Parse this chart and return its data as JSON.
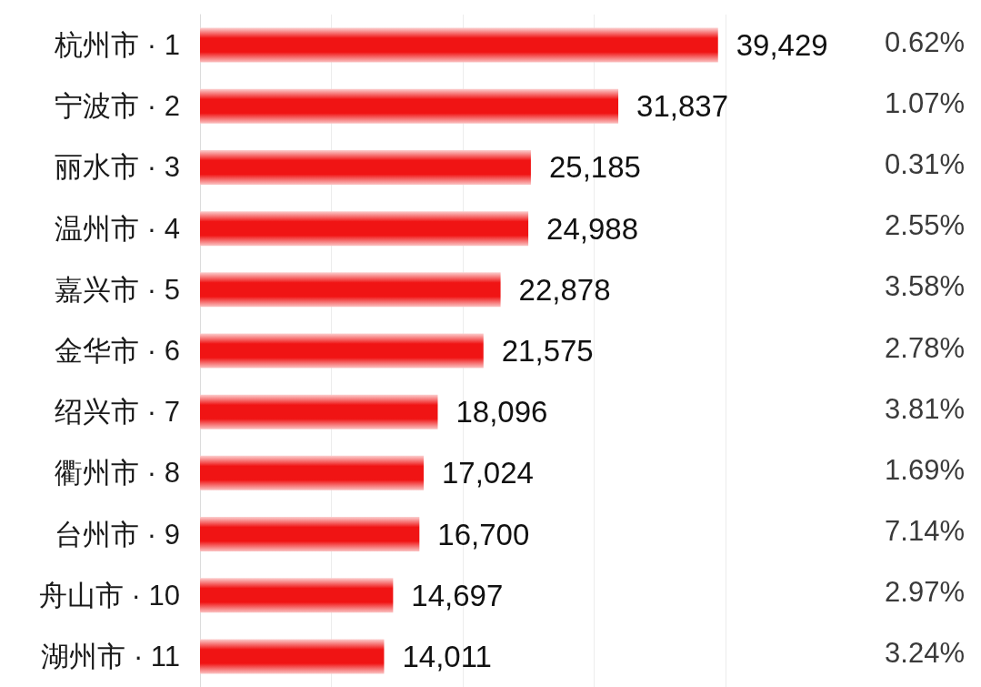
{
  "chart_data": {
    "type": "bar",
    "orientation": "horizontal",
    "categories": [
      "杭州市 · 1",
      "宁波市 · 2",
      "丽水市 · 3",
      "温州市 · 4",
      "嘉兴市 · 5",
      "金华市 · 6",
      "绍兴市 · 7",
      "衢州市 · 8",
      "台州市 · 9",
      "舟山市 · 10",
      "湖州市 · 11"
    ],
    "values": [
      39429,
      31837,
      25185,
      24988,
      22878,
      21575,
      18096,
      17024,
      16700,
      14697,
      14011
    ],
    "value_labels": [
      "39,429",
      "31,837",
      "25,185",
      "24,988",
      "22,878",
      "21,575",
      "18,096",
      "17,024",
      "16,700",
      "14,697",
      "14,011"
    ],
    "color": "#f01414",
    "grid": "x",
    "tick_labels": "y",
    "annotations": [
      "0.62%",
      "1.07%",
      "0.31%",
      "2.55%",
      "3.58%",
      "2.78%",
      "3.81%",
      "1.69%",
      "7.14%",
      "2.97%",
      "3.24%"
    ]
  }
}
